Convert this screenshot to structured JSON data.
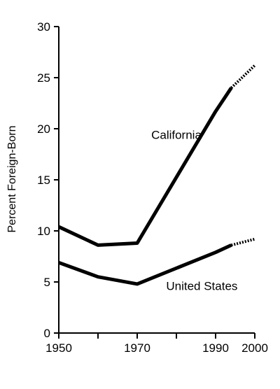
{
  "chart_data": {
    "type": "line",
    "title": "",
    "xlabel": "",
    "ylabel": "Percent Foreign-Born",
    "xlim": [
      1950,
      2000
    ],
    "ylim": [
      0,
      30
    ],
    "x_ticks": [
      1950,
      1960,
      1970,
      1980,
      1990,
      2000
    ],
    "x_tick_labels": [
      "1950",
      "",
      "1970",
      "",
      "1990",
      "2000"
    ],
    "y_ticks": [
      0,
      5,
      10,
      15,
      20,
      25,
      30
    ],
    "y_tick_labels": [
      "0",
      "5",
      "10",
      "15",
      "20",
      "25",
      "30"
    ],
    "grid": false,
    "series": [
      {
        "name": "California",
        "x": [
          1950,
          1960,
          1970,
          1990,
          1994
        ],
        "values": [
          10.4,
          8.6,
          8.8,
          21.7,
          24.0
        ],
        "projected_x": [
          1994,
          2000
        ],
        "projected_values": [
          24.0,
          26.2
        ]
      },
      {
        "name": "United States",
        "x": [
          1950,
          1960,
          1970,
          1990,
          1994
        ],
        "values": [
          6.9,
          5.5,
          4.8,
          7.9,
          8.6
        ],
        "projected_x": [
          1994,
          2000
        ],
        "projected_values": [
          8.6,
          9.2
        ]
      }
    ],
    "annotations": [
      {
        "text": "California",
        "x": 1980,
        "y": 19.0
      },
      {
        "text": "United States",
        "x": 1986.5,
        "y": 4.2
      }
    ]
  }
}
